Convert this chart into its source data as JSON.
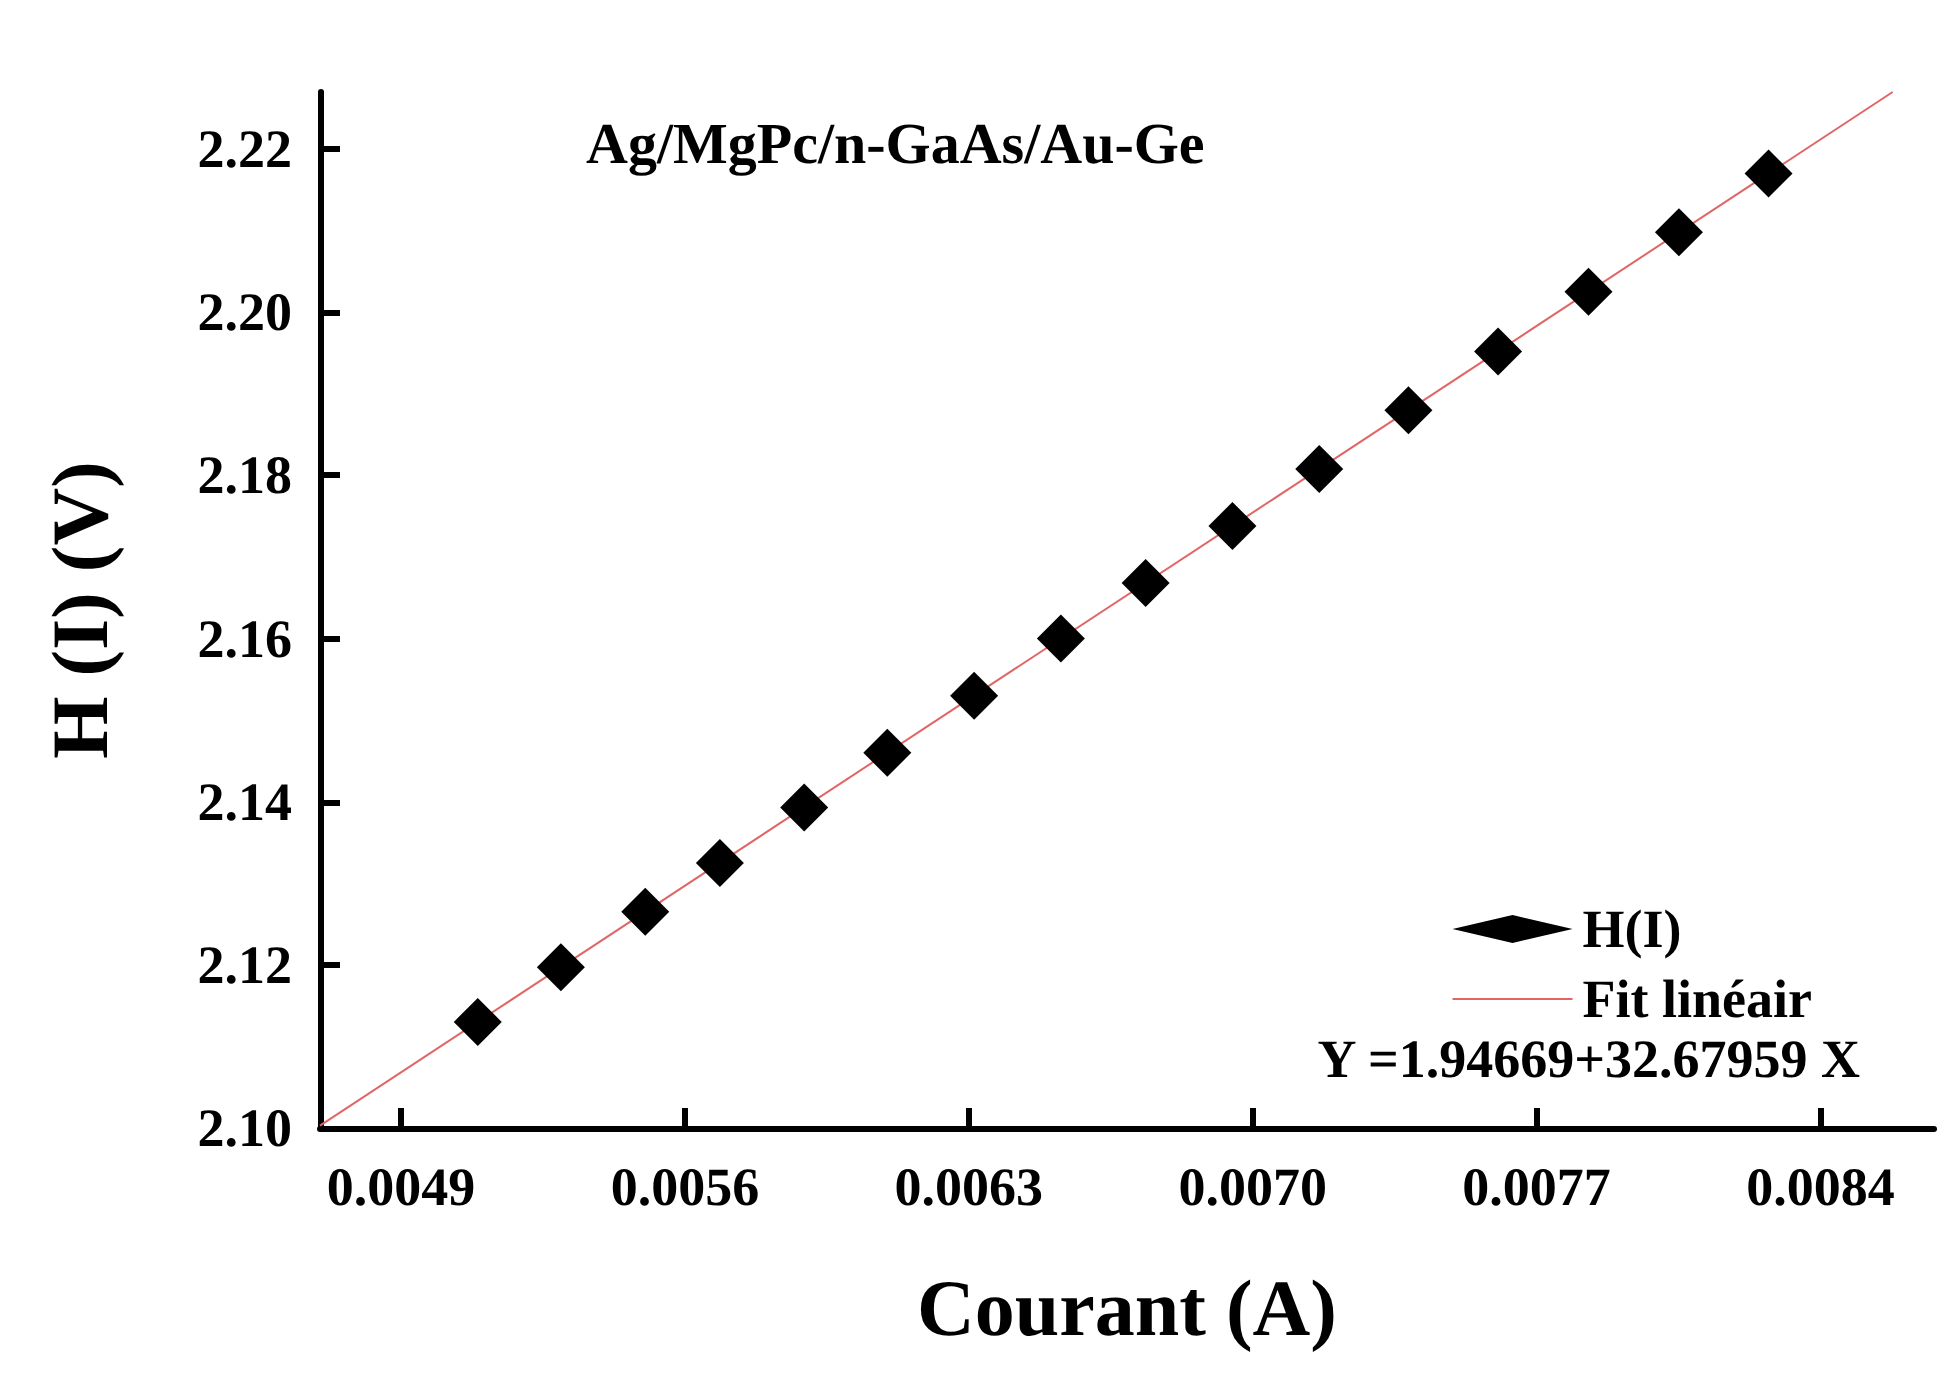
{
  "chart_data": {
    "type": "scatter",
    "title": "Ag/MgPc/n-GaAs/Au-Ge",
    "xlabel": "Courant (A)",
    "ylabel": "H (I) (V)",
    "annotations": [
      "Y =1.94669+32.67959 X"
    ],
    "series": [
      {
        "name": "H(I)",
        "color": "#000000",
        "marker": "diamond",
        "x": [
          0.005089,
          0.005294,
          0.005502,
          0.005686,
          0.005894,
          0.006099,
          0.006313,
          0.006527,
          0.006736,
          0.00695,
          0.007164,
          0.007384,
          0.007605,
          0.007828,
          0.008051,
          0.008272
        ],
        "values": [
          2.113,
          2.1197,
          2.1265,
          2.1325,
          2.1393,
          2.146,
          2.153,
          2.16,
          2.1668,
          2.1738,
          2.1808,
          2.188,
          2.1952,
          2.2025,
          2.2098,
          2.217
        ]
      },
      {
        "name": "Fit linéair",
        "type": "line",
        "color": "#e06666",
        "x": [
          0.0047,
          0.008578
        ],
        "values": [
          2.1003,
          2.227
        ]
      }
    ],
    "xlim": [
      0.0047,
      0.00868
    ],
    "xticks": [
      0.0049,
      0.0056,
      0.0063,
      {
        "value": 0.007,
        "label": "0.0070"
      },
      0.0077,
      0.0084
    ],
    "ylim": [
      2.1,
      2.227
    ],
    "yticks": [
      {
        "value": 2.1,
        "label": "2.10"
      },
      2.12,
      2.14,
      2.16,
      2.18,
      {
        "value": 2.2,
        "label": "2.20"
      },
      2.22
    ],
    "grid": false,
    "legend": "bottom right"
  }
}
